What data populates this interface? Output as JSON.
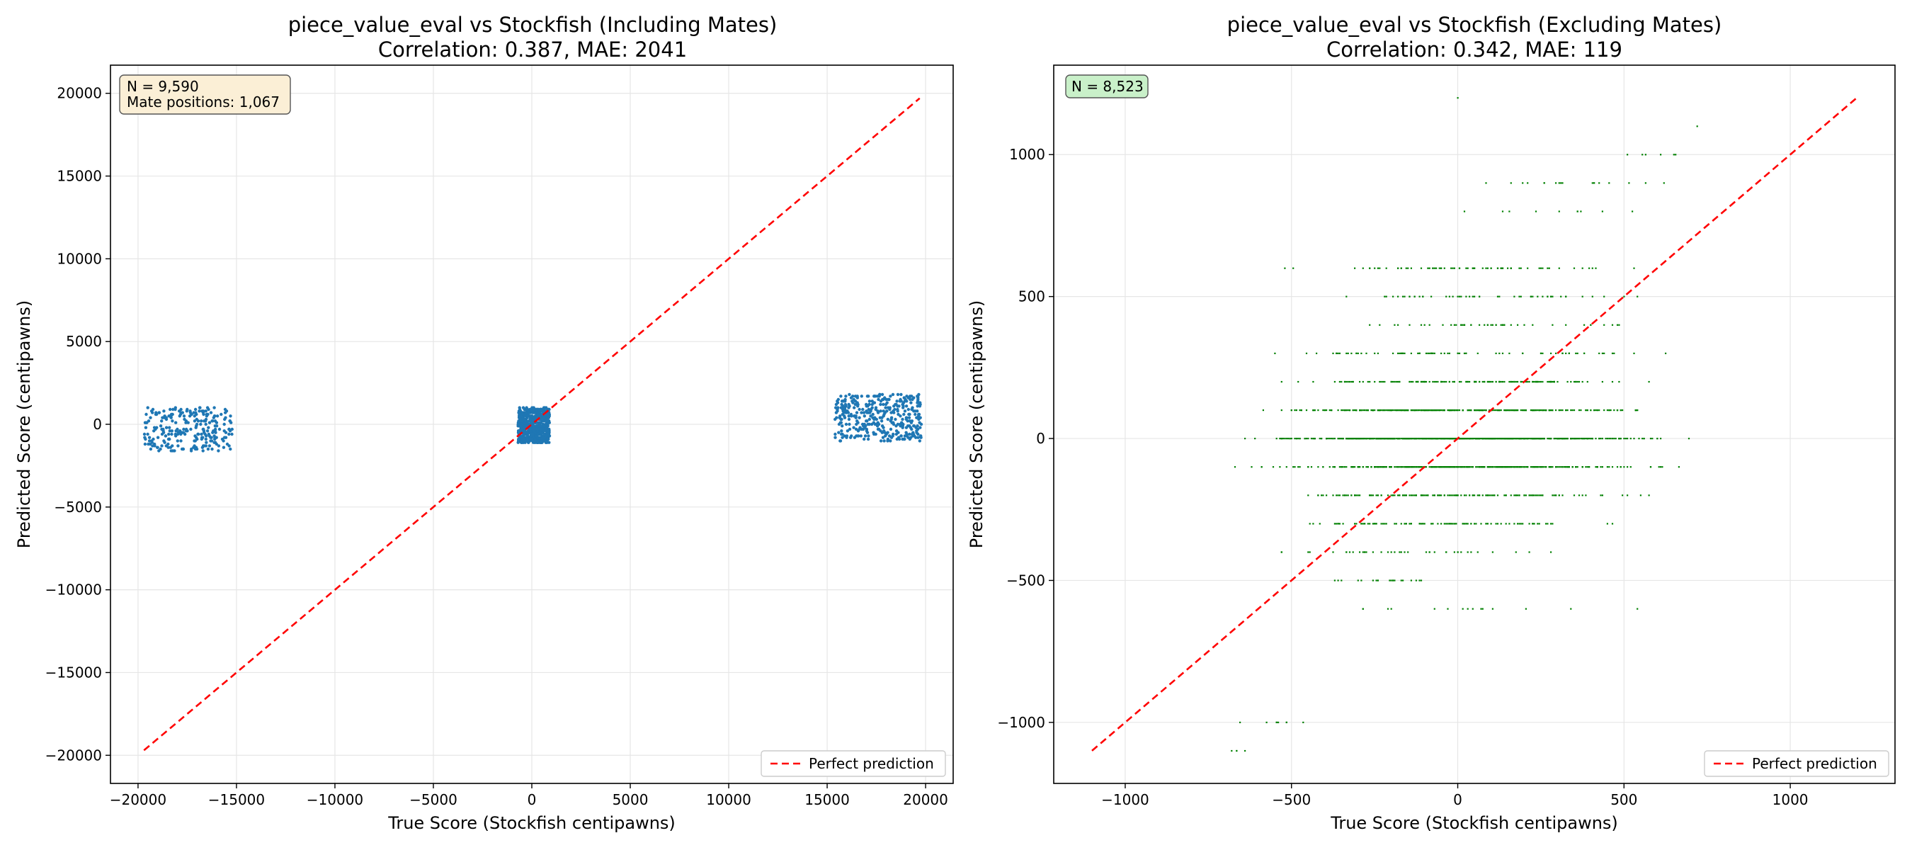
{
  "chart_data": [
    {
      "type": "scatter",
      "title": "piece_value_eval vs Stockfish (Including Mates)",
      "subtitle": "Correlation: 0.387, MAE: 2041",
      "xlabel": "True Score (Stockfish centipawns)",
      "ylabel": "Predicted Score (centipawns)",
      "xlim": [
        -21400,
        21400
      ],
      "ylim": [
        -21700,
        21700
      ],
      "xticks": [
        -20000,
        -15000,
        -10000,
        -5000,
        0,
        5000,
        10000,
        15000,
        20000
      ],
      "xtick_labels": [
        "−20000",
        "−15000",
        "−10000",
        "−5000",
        "0",
        "5000",
        "10000",
        "15000",
        "20000"
      ],
      "yticks": [
        20000,
        15000,
        10000,
        5000,
        0,
        -5000,
        -10000,
        -15000,
        -20000
      ],
      "ytick_labels": [
        "20000",
        "15000",
        "10000",
        "5000",
        "0",
        "−5000",
        "−10000",
        "−15000",
        "−20000"
      ],
      "grid": true,
      "legend_position": "lower-right",
      "point_color": "#1f77b4",
      "line_color": "#ff0000",
      "box_color": "#fbefd6",
      "annotation_lines": [
        "N = 9,590",
        "Mate positions: 1,067"
      ],
      "perfect_line": {
        "from": [
          -19700,
          -19700
        ],
        "to": [
          19700,
          19700
        ],
        "label": "Perfect prediction"
      },
      "clusters": [
        {
          "x_range": [
            -19700,
            -15200
          ],
          "y_range": [
            -1600,
            1000
          ],
          "count": 260
        },
        {
          "x_range": [
            -700,
            900
          ],
          "y_range": [
            -1100,
            1000
          ],
          "count": 700
        },
        {
          "x_range": [
            15400,
            19800
          ],
          "y_range": [
            -1000,
            1800
          ],
          "count": 380
        }
      ]
    },
    {
      "type": "scatter",
      "title": "piece_value_eval vs Stockfish (Excluding Mates)",
      "subtitle": "Correlation: 0.342, MAE: 119",
      "xlabel": "True Score (Stockfish centipawns)",
      "ylabel": "Predicted Score (centipawns)",
      "xlim": [
        -1215,
        1315
      ],
      "ylim": [
        -1215,
        1315
      ],
      "xticks": [
        -1000,
        -500,
        0,
        500,
        1000
      ],
      "xtick_labels": [
        "−1000",
        "−500",
        "0",
        "500",
        "1000"
      ],
      "yticks": [
        1000,
        500,
        0,
        -500,
        -1000
      ],
      "ytick_labels": [
        "1000",
        "500",
        "0",
        "−500",
        "−1000"
      ],
      "grid": true,
      "legend_position": "lower-right",
      "point_color": "#008000",
      "line_color": "#ff0000",
      "box_color": "#c9f0c9",
      "annotation_lines": [
        "N = 8,523"
      ],
      "perfect_line": {
        "from": [
          -1100,
          -1100
        ],
        "to": [
          1200,
          1200
        ],
        "label": "Perfect prediction"
      },
      "rows": [
        {
          "y": 1000,
          "x_range": [
            450,
            750
          ],
          "count": 6
        },
        {
          "y": 900,
          "x_range": [
            -100,
            700
          ],
          "count": 18
        },
        {
          "y": 800,
          "x_range": [
            -350,
            700
          ],
          "count": 10
        },
        {
          "y": 600,
          "x_range": [
            -700,
            750
          ],
          "count": 70
        },
        {
          "y": 500,
          "x_range": [
            -500,
            720
          ],
          "count": 50
        },
        {
          "y": 400,
          "x_range": [
            -400,
            650
          ],
          "count": 45
        },
        {
          "y": 300,
          "x_range": [
            -750,
            720
          ],
          "count": 80
        },
        {
          "y": 200,
          "x_range": [
            -600,
            700
          ],
          "count": 150
        },
        {
          "y": 100,
          "x_range": [
            -750,
            750
          ],
          "count": 380
        },
        {
          "y": 0,
          "x_range": [
            -700,
            750
          ],
          "count": 700
        },
        {
          "y": -100,
          "x_range": [
            -750,
            750
          ],
          "count": 380
        },
        {
          "y": -200,
          "x_range": [
            -700,
            700
          ],
          "count": 150
        },
        {
          "y": -300,
          "x_range": [
            -750,
            600
          ],
          "count": 100
        },
        {
          "y": -400,
          "x_range": [
            -600,
            400
          ],
          "count": 40
        },
        {
          "y": -500,
          "x_range": [
            -500,
            0
          ],
          "count": 20
        },
        {
          "y": -600,
          "x_range": [
            -750,
            750
          ],
          "count": 15
        },
        {
          "y": -1000,
          "x_range": [
            -750,
            -350
          ],
          "count": 8
        },
        {
          "y": -1100,
          "x_range": [
            -730,
            -620
          ],
          "count": 4
        }
      ],
      "extra_points": [
        {
          "x": 0,
          "y": 1200
        },
        {
          "x": 720,
          "y": 1100
        }
      ]
    }
  ]
}
